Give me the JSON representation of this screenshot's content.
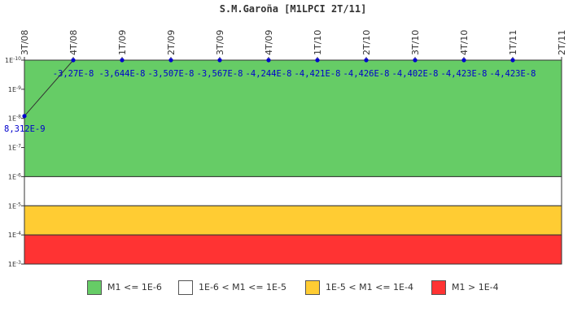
{
  "chart_data": {
    "type": "line",
    "title": "S.M.Garoña [M1LPCI 2T/11]",
    "x_categories": [
      "3T/08",
      "4T/08",
      "1T/09",
      "2T/09",
      "3T/09",
      "4T/09",
      "1T/10",
      "2T/10",
      "3T/10",
      "4T/10",
      "1T/11",
      "2T/11"
    ],
    "y_scale": "log",
    "y_tick_labels": [
      "1E-10",
      "1E-9",
      "1E-8",
      "1E-7",
      "1E-6",
      "1E-5",
      "1E-4",
      "1E-3"
    ],
    "y_range": [
      1e-10,
      0.001
    ],
    "y_axis_inverted": true,
    "bands": [
      {
        "label": "M1 <= 1E-6",
        "from": 1e-10,
        "to": 1e-06,
        "color": "#66cc66"
      },
      {
        "label": "1E-6 < M1 <= 1E-5",
        "from": 1e-06,
        "to": 1e-05,
        "color": "#ffffff"
      },
      {
        "label": "1E-5 < M1 <= 1E-4",
        "from": 1e-05,
        "to": 0.0001,
        "color": "#ffcc33"
      },
      {
        "label": "M1 > 1E-4",
        "from": 0.0001,
        "to": 0.001,
        "color": "#ff3333"
      }
    ],
    "series": [
      {
        "color": "#0000cc",
        "line_color": "#333333",
        "points": [
          {
            "x": "3T/08",
            "y": 8.312e-09,
            "label": "8,312E-9"
          },
          {
            "x": "4T/08",
            "y": -3.27e-08,
            "label": "-3,27E-8"
          },
          {
            "x": "1T/09",
            "y": -3.644e-08,
            "label": "-3,644E-8"
          },
          {
            "x": "2T/09",
            "y": -3.507e-08,
            "label": "-3,507E-8"
          },
          {
            "x": "3T/09",
            "y": -3.567e-08,
            "label": "-3,567E-8"
          },
          {
            "x": "4T/09",
            "y": -4.244e-08,
            "label": "-4,244E-8"
          },
          {
            "x": "1T/10",
            "y": -4.421e-08,
            "label": "-4,421E-8"
          },
          {
            "x": "2T/10",
            "y": -4.426e-08,
            "label": "-4,426E-8"
          },
          {
            "x": "3T/10",
            "y": -4.402e-08,
            "label": "-4,402E-8"
          },
          {
            "x": "4T/10",
            "y": -4.423e-08,
            "label": "-4,423E-8"
          },
          {
            "x": "1T/11",
            "y": -4.423e-08,
            "label": "-4,423E-8"
          }
        ]
      }
    ],
    "legend_position": "bottom",
    "grid": false
  }
}
